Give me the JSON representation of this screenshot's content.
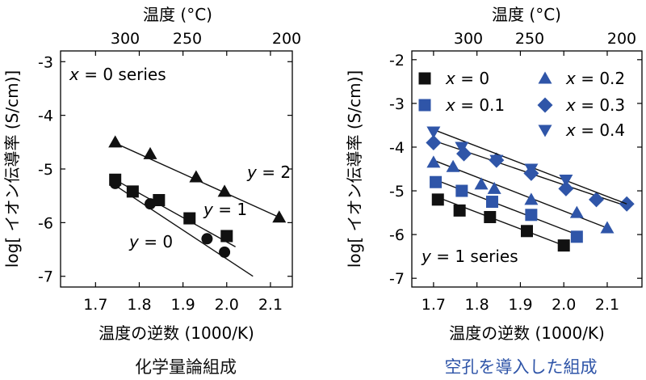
{
  "captions": {
    "left": "化学量論組成",
    "right": "空孔を導入した組成"
  },
  "colors": {
    "black_series": "#111111",
    "blue_series": "#2f55a8",
    "right_caption": "#2f55a8"
  },
  "chart_data": [
    {
      "type": "scatter",
      "xlabel": "温度の逆数 (1000/K)",
      "ylabel": "log[ イオン伝導率 (S/cm)]",
      "top_axis_label": "温度 (°C)",
      "xlim": [
        1.62,
        2.15
      ],
      "ylim": [
        -7.2,
        -2.8
      ],
      "x_ticks": [
        "1.7",
        "1.8",
        "1.9",
        "2.0",
        "2.1"
      ],
      "y_ticks": [
        "-7",
        "-6",
        "-5",
        "-4",
        "-3"
      ],
      "top_ticks": [
        "300",
        "250",
        "200"
      ],
      "annotation": {
        "x_text": "x",
        "rest": " = 0 series"
      },
      "series": [
        {
          "name": "y = 0",
          "marker": "circle",
          "color": "#111111",
          "label_var": "y",
          "label_rest": " = 0",
          "x": [
            1.745,
            1.825,
            1.955,
            1.995
          ],
          "y": [
            -5.27,
            -5.65,
            -6.3,
            -6.55
          ],
          "fit": [
            [
              1.74,
              -5.28
            ],
            [
              2.06,
              -7.0
            ]
          ]
        },
        {
          "name": "y = 1",
          "marker": "square",
          "color": "#111111",
          "label_var": "y",
          "label_rest": " = 1",
          "x": [
            1.745,
            1.785,
            1.845,
            1.915,
            2.0
          ],
          "y": [
            -5.2,
            -5.42,
            -5.58,
            -5.92,
            -6.25
          ],
          "fit": [
            [
              1.74,
              -5.18
            ],
            [
              2.02,
              -6.45
            ]
          ]
        },
        {
          "name": "y = 2",
          "marker": "triangle",
          "color": "#111111",
          "label_var": "y",
          "label_rest": " = 2",
          "x": [
            1.745,
            1.825,
            1.93,
            1.995,
            2.12
          ],
          "y": [
            -4.5,
            -4.72,
            -5.15,
            -5.42,
            -5.9
          ],
          "fit": [
            [
              1.74,
              -4.5
            ],
            [
              2.12,
              -5.9
            ]
          ]
        }
      ]
    },
    {
      "type": "scatter",
      "xlabel": "温度の逆数 (1000/K)",
      "ylabel": "log[ イオン伝導率 (S/cm)]",
      "top_axis_label": "温度 (°C)",
      "xlim": [
        1.65,
        2.18
      ],
      "ylim": [
        -7.2,
        -1.8
      ],
      "x_ticks": [
        "1.7",
        "1.8",
        "1.9",
        "2.0",
        "2.1"
      ],
      "y_ticks": [
        "-7",
        "-6",
        "-5",
        "-4",
        "-3",
        "-2"
      ],
      "top_ticks": [
        "300",
        "250",
        "200"
      ],
      "annotation": {
        "x_text": "y",
        "rest": " = 1 series"
      },
      "series": [
        {
          "name": "x = 0",
          "marker": "square",
          "color": "#111111",
          "label_var": "x",
          "label_rest": " = 0",
          "x": [
            1.71,
            1.76,
            1.83,
            1.915,
            2.0
          ],
          "y": [
            -5.2,
            -5.45,
            -5.6,
            -5.92,
            -6.25
          ],
          "fit": [
            [
              1.71,
              -5.15
            ],
            [
              2.0,
              -6.25
            ]
          ]
        },
        {
          "name": "x = 0.1",
          "marker": "square",
          "color": "#2f55a8",
          "label_var": "x",
          "label_rest": " = 0.1",
          "x": [
            1.705,
            1.765,
            1.835,
            1.925,
            2.03
          ],
          "y": [
            -4.8,
            -5.0,
            -5.25,
            -5.55,
            -6.05
          ],
          "fit": [
            [
              1.705,
              -4.75
            ],
            [
              2.03,
              -6.0
            ]
          ]
        },
        {
          "name": "x = 0.2",
          "marker": "triangle",
          "color": "#2f55a8",
          "label_var": "x",
          "label_rest": " = 0.2",
          "x": [
            1.7,
            1.745,
            1.81,
            1.84,
            1.925,
            2.03,
            2.1
          ],
          "y": [
            -4.35,
            -4.45,
            -4.85,
            -4.95,
            -5.2,
            -5.5,
            -5.85
          ],
          "fit": [
            [
              1.7,
              -4.3
            ],
            [
              2.1,
              -5.85
            ]
          ]
        },
        {
          "name": "x = 0.3",
          "marker": "diamond",
          "color": "#2f55a8",
          "label_var": "x",
          "label_rest": " = 0.3",
          "x": [
            1.7,
            1.77,
            1.845,
            1.925,
            2.005,
            2.075,
            2.145
          ],
          "y": [
            -3.9,
            -4.15,
            -4.3,
            -4.6,
            -4.95,
            -5.2,
            -5.3
          ],
          "fit": [
            [
              1.7,
              -3.85
            ],
            [
              2.145,
              -5.35
            ]
          ]
        },
        {
          "name": "x = 0.4",
          "marker": "triangle-down",
          "color": "#2f55a8",
          "label_var": "x",
          "label_rest": " = 0.4",
          "x": [
            1.7,
            1.765,
            1.845,
            1.925,
            2.005
          ],
          "y": [
            -3.65,
            -4.0,
            -4.3,
            -4.5,
            -4.75
          ],
          "fit": [
            [
              1.7,
              -3.6
            ],
            [
              2.145,
              -5.3
            ]
          ]
        }
      ]
    }
  ]
}
